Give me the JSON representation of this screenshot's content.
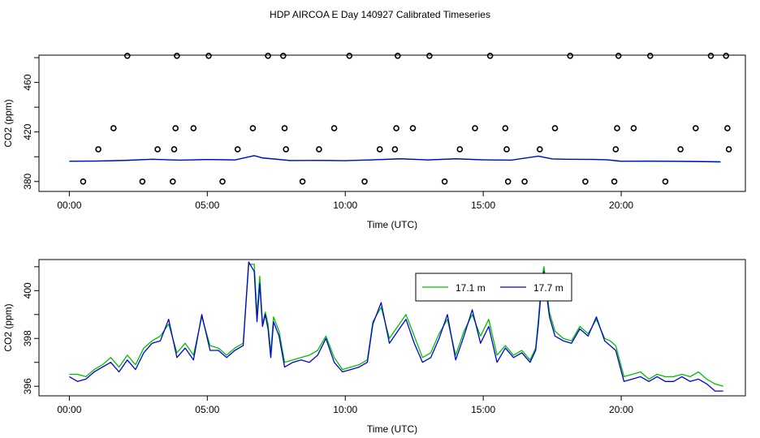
{
  "title": "HDP AIRCOA E  Day 140927  Calibrated Timeseries",
  "colors": {
    "green": "#00c000",
    "blue": "#0000e0",
    "frame": "#000000",
    "marker": "#000000"
  },
  "chart_data": [
    {
      "type": "scatter+line",
      "id": "top",
      "xlabel": "Time (UTC)",
      "ylabel": "CO2 (ppm)",
      "xlim": [
        -1.1,
        24.5
      ],
      "ylim": [
        372,
        482
      ],
      "xticks": [
        0,
        5,
        10,
        15,
        20
      ],
      "xticklabels": [
        "00:00",
        "05:00",
        "10:00",
        "15:00",
        "20:00"
      ],
      "yticks": [
        380,
        400,
        420,
        440,
        460,
        480
      ],
      "yticklabels": [
        "380",
        "",
        "420",
        "",
        "460",
        ""
      ],
      "markers": {
        "t": [
          0.5,
          1.05,
          1.6,
          2.1,
          2.65,
          3.2,
          3.75,
          3.8,
          3.85,
          3.9,
          4.5,
          5.05,
          5.55,
          6.1,
          6.65,
          7.2,
          7.75,
          7.8,
          7.85,
          8.45,
          9.05,
          9.6,
          10.15,
          10.7,
          11.25,
          11.8,
          11.85,
          11.9,
          12.45,
          13.05,
          13.6,
          14.15,
          14.7,
          15.25,
          15.8,
          15.85,
          15.9,
          16.5,
          17.05,
          17.6,
          18.15,
          18.7,
          19.75,
          19.8,
          19.85,
          19.9,
          20.45,
          21.05,
          21.6,
          22.15,
          22.7,
          23.25,
          23.8,
          23.85,
          23.9
        ],
        "co2": [
          380,
          406,
          423,
          484,
          380,
          406,
          380,
          406,
          423,
          484,
          423,
          484,
          380,
          406,
          423,
          484,
          484,
          423,
          406,
          380,
          406,
          423,
          484,
          380,
          406,
          406,
          423,
          484,
          423,
          484,
          380,
          406,
          423,
          484,
          423,
          406,
          380,
          380,
          406,
          423,
          484,
          380,
          380,
          406,
          423,
          484,
          423,
          484,
          380,
          406,
          423,
          484,
          484,
          423,
          406
        ]
      },
      "series": [
        {
          "name": "17.1 m",
          "color": "#00c000",
          "t": [
            0,
            1,
            2,
            3,
            4,
            5,
            6,
            6.7,
            7,
            7.5,
            8,
            9,
            10,
            11,
            12,
            13,
            14,
            15,
            16,
            17,
            17.5,
            18,
            19,
            19.5,
            20,
            21,
            22,
            23,
            23.6
          ],
          "co2": [
            396.4,
            396.6,
            397.1,
            398.0,
            397.3,
            397.8,
            397.5,
            400.8,
            399.2,
            398.1,
            397.0,
            397.1,
            396.9,
            397.6,
            398.4,
            397.5,
            398.4,
            397.6,
            397.3,
            400.4,
            398.3,
            398.0,
            397.9,
            397.6,
            396.5,
            396.6,
            396.4,
            396.2,
            396.0
          ]
        },
        {
          "name": "17.7 m",
          "color": "#0000e0",
          "t": [
            0,
            1,
            2,
            3,
            4,
            5,
            6,
            6.7,
            7,
            7.5,
            8,
            9,
            10,
            11,
            12,
            13,
            14,
            15,
            16,
            17,
            17.5,
            18,
            19,
            19.5,
            20,
            21,
            22,
            23,
            23.6
          ],
          "co2": [
            396.3,
            396.5,
            397.0,
            397.9,
            397.2,
            397.7,
            397.4,
            400.9,
            399.0,
            398.0,
            396.9,
            397.0,
            396.8,
            397.5,
            398.3,
            397.4,
            398.3,
            397.5,
            397.2,
            400.5,
            398.2,
            397.9,
            397.8,
            397.5,
            396.3,
            396.3,
            396.2,
            396.0,
            395.8
          ]
        }
      ]
    },
    {
      "type": "line",
      "id": "bottom",
      "xlabel": "Time (UTC)",
      "ylabel": "CO2 (ppm)",
      "xlim": [
        -1.1,
        24.5
      ],
      "ylim": [
        395.6,
        401.3
      ],
      "xticks": [
        0,
        5,
        10,
        15,
        20
      ],
      "xticklabels": [
        "00:00",
        "05:00",
        "10:00",
        "15:00",
        "20:00"
      ],
      "yticks": [
        396,
        397,
        398,
        399,
        400,
        401
      ],
      "yticklabels": [
        "396",
        "",
        "398",
        "",
        "400",
        ""
      ],
      "legend": {
        "position": "top-right",
        "entries": [
          "17.1 m",
          "17.7 m"
        ]
      },
      "series": [
        {
          "name": "17.1 m",
          "color": "#00c000",
          "t": [
            0,
            0.3,
            0.6,
            0.9,
            1.2,
            1.5,
            1.8,
            2.1,
            2.4,
            2.7,
            3.0,
            3.3,
            3.6,
            3.9,
            4.2,
            4.5,
            4.8,
            5.1,
            5.4,
            5.7,
            6.0,
            6.3,
            6.5,
            6.7,
            6.8,
            6.9,
            7.0,
            7.1,
            7.2,
            7.3,
            7.4,
            7.6,
            7.8,
            8.1,
            8.4,
            8.7,
            9.0,
            9.3,
            9.6,
            9.9,
            10.2,
            10.5,
            10.8,
            11.0,
            11.3,
            11.6,
            11.9,
            12.2,
            12.5,
            12.8,
            13.1,
            13.4,
            13.7,
            14.0,
            14.3,
            14.6,
            14.9,
            15.2,
            15.5,
            15.8,
            16.1,
            16.4,
            16.7,
            16.9,
            17.0,
            17.1,
            17.2,
            17.3,
            17.4,
            17.6,
            17.9,
            18.2,
            18.5,
            18.8,
            19.1,
            19.4,
            19.6,
            19.8,
            20.1,
            20.4,
            20.7,
            21.0,
            21.3,
            21.6,
            21.9,
            22.2,
            22.5,
            22.8,
            23.1,
            23.4,
            23.7
          ],
          "co2": [
            396.5,
            396.5,
            396.4,
            396.7,
            396.9,
            397.2,
            396.8,
            397.3,
            396.9,
            397.6,
            397.9,
            398.1,
            398.6,
            397.4,
            397.8,
            397.3,
            398.9,
            397.7,
            397.6,
            397.3,
            397.6,
            397.8,
            401.1,
            401.1,
            399.0,
            400.6,
            398.6,
            399.1,
            398.6,
            397.4,
            398.9,
            398.3,
            397.0,
            397.1,
            397.2,
            397.3,
            397.5,
            398.1,
            397.2,
            396.7,
            396.8,
            396.9,
            397.1,
            398.7,
            399.3,
            398.0,
            398.5,
            399.0,
            398.1,
            397.2,
            397.4,
            398.2,
            398.8,
            397.3,
            398.3,
            399.0,
            398.1,
            398.8,
            397.3,
            397.7,
            397.3,
            397.5,
            397.1,
            397.6,
            398.8,
            400.3,
            401.0,
            400.0,
            399.1,
            398.3,
            398.0,
            397.9,
            398.5,
            398.2,
            398.8,
            398.0,
            397.9,
            397.7,
            396.4,
            396.5,
            396.6,
            396.3,
            396.5,
            396.4,
            396.4,
            396.5,
            396.4,
            396.6,
            396.3,
            396.1,
            396.0
          ]
        },
        {
          "name": "17.7 m",
          "color": "#0000e0",
          "t": [
            0,
            0.3,
            0.6,
            0.9,
            1.2,
            1.5,
            1.8,
            2.1,
            2.4,
            2.7,
            3.0,
            3.3,
            3.6,
            3.9,
            4.2,
            4.5,
            4.8,
            5.1,
            5.4,
            5.7,
            6.0,
            6.3,
            6.5,
            6.7,
            6.8,
            6.9,
            7.0,
            7.1,
            7.2,
            7.3,
            7.4,
            7.6,
            7.8,
            8.1,
            8.4,
            8.7,
            9.0,
            9.3,
            9.6,
            9.9,
            10.2,
            10.5,
            10.8,
            11.0,
            11.3,
            11.6,
            11.9,
            12.2,
            12.5,
            12.8,
            13.1,
            13.4,
            13.7,
            14.0,
            14.3,
            14.6,
            14.9,
            15.2,
            15.5,
            15.8,
            16.1,
            16.4,
            16.7,
            16.9,
            17.0,
            17.1,
            17.2,
            17.3,
            17.4,
            17.6,
            17.9,
            18.2,
            18.5,
            18.8,
            19.1,
            19.4,
            19.6,
            19.8,
            20.1,
            20.4,
            20.7,
            21.0,
            21.3,
            21.6,
            21.9,
            22.2,
            22.5,
            22.8,
            23.1,
            23.4,
            23.7
          ],
          "co2": [
            396.4,
            396.2,
            396.3,
            396.6,
            396.8,
            397.0,
            396.6,
            397.1,
            396.7,
            397.4,
            397.8,
            397.9,
            398.8,
            397.2,
            397.6,
            397.1,
            399.0,
            397.5,
            397.5,
            397.2,
            397.5,
            397.7,
            401.2,
            400.8,
            398.7,
            400.3,
            398.5,
            399.0,
            398.4,
            397.2,
            398.7,
            398.1,
            396.8,
            397.0,
            397.1,
            397.0,
            397.3,
            398.0,
            397.0,
            396.6,
            396.7,
            396.8,
            397.0,
            398.6,
            399.5,
            397.8,
            398.3,
            398.8,
            397.8,
            397.0,
            397.2,
            398.0,
            399.0,
            397.1,
            398.1,
            399.2,
            397.8,
            398.5,
            397.0,
            397.6,
            397.2,
            397.4,
            397.0,
            397.5,
            398.6,
            400.0,
            400.8,
            399.8,
            398.9,
            398.1,
            397.9,
            397.8,
            398.4,
            398.1,
            398.9,
            397.9,
            397.7,
            397.5,
            396.2,
            396.3,
            396.4,
            396.2,
            396.4,
            396.2,
            396.2,
            396.4,
            396.2,
            396.3,
            396.1,
            395.8,
            395.8
          ]
        }
      ]
    }
  ]
}
